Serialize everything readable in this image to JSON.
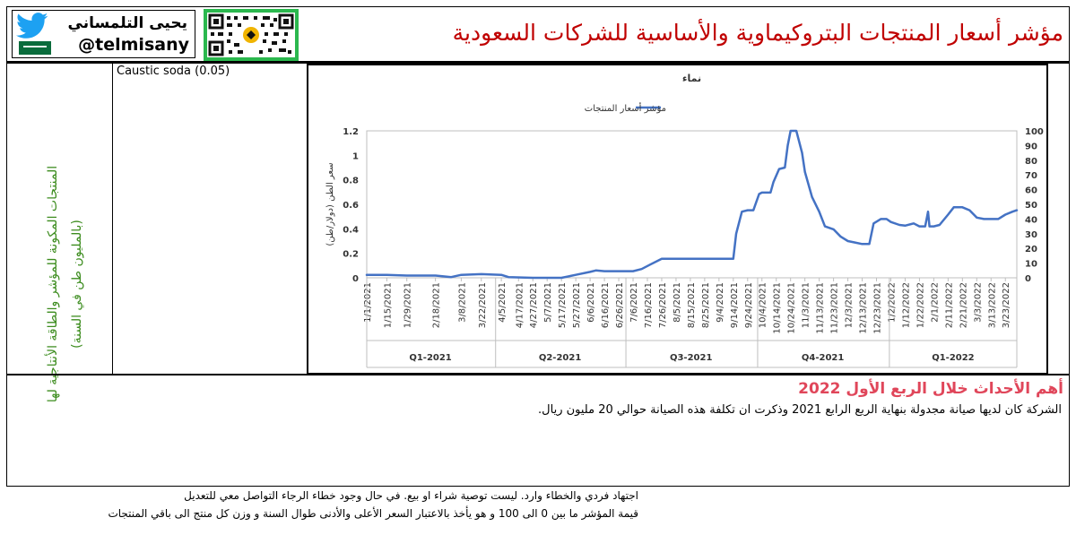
{
  "header": {
    "title": "مؤشر أسعار المنتجات البتروكيماوية والأساسية للشركات السعودية",
    "author_name": "يحيى التلمساني",
    "author_handle": "@telmisany"
  },
  "left_panel": {
    "vertical_text": "المنتجات المكونة للمؤشر والطاقة الأنتاجية لها (بالمليون طن في السنة)"
  },
  "products_panel": {
    "items": [
      "Caustic soda (0.05)"
    ]
  },
  "events": {
    "title": "أهم الأحداث خلال الربع الأول 2022",
    "text": "الشركة كان لديها صيانة مجدولة بنهاية الربع الرابع 2021 وذكرت ان تكلفة هذه الصيانة حوالي 20 مليون ريال."
  },
  "footer": {
    "line1": "اجتهاد فردي والخطاء وارد. ليست توصية شراء او بيع. في حال وجود خطاء الرجاء التواصل معي للتعديل",
    "line2": "قيمة المؤشر ما بين 0 الى 100 و هو يأخذ بالاعتبار السعر الأعلى والأدنى طوال السنة و وزن كل منتج الى باقي المنتجات"
  },
  "colors": {
    "title": "#c00000",
    "events_title": "#e0465a",
    "vertical_text": "#3c8c1e",
    "series_line": "#4472c4",
    "qr_background": "#2bb84e"
  },
  "chart_data": {
    "type": "line",
    "title": "نماء",
    "ylabel": "سعر الطن (دولار/طن)",
    "legend": {
      "position": "top",
      "label": "مؤشر أسعار المنتجات"
    },
    "y_left": {
      "min": 0,
      "max": 1.2,
      "ticks": [
        "0",
        "0.2",
        "0.4",
        "0.6",
        "0.8",
        "1",
        "1.2"
      ]
    },
    "y_right": {
      "min": 0,
      "max": 100,
      "ticks": [
        "0",
        "10",
        "20",
        "30",
        "40",
        "50",
        "60",
        "70",
        "80",
        "90",
        "100"
      ]
    },
    "x_tick_labels": [
      "1/1/2021",
      "1/15/2021",
      "1/29/2021",
      "2/18/2021",
      "3/8/2021",
      "3/22/2021",
      "4/5/2021",
      "4/17/2021",
      "4/27/2021",
      "5/7/2021",
      "5/17/2021",
      "5/27/2021",
      "6/6/2021",
      "6/16/2021",
      "6/26/2021",
      "7/6/2021",
      "7/16/2021",
      "7/26/2021",
      "8/5/2021",
      "8/15/2021",
      "8/25/2021",
      "9/4/2021",
      "9/14/2021",
      "9/24/2021",
      "10/4/2021",
      "10/14/2021",
      "10/24/2021",
      "11/3/2021",
      "11/13/2021",
      "11/23/2021",
      "12/3/2021",
      "12/13/2021",
      "12/23/2021",
      "1/2/2022",
      "1/12/2022",
      "1/22/2022",
      "2/1/2022",
      "2/11/2022",
      "2/21/2022",
      "3/3/2022",
      "3/13/2022",
      "3/23/2022"
    ],
    "quarters": [
      {
        "label": "Q1-2021",
        "start": "1/1/2021",
        "end": "3/31/2021"
      },
      {
        "label": "Q2-2021",
        "start": "4/1/2021",
        "end": "6/30/2021"
      },
      {
        "label": "Q3-2021",
        "start": "7/1/2021",
        "end": "9/30/2021"
      },
      {
        "label": "Q4-2021",
        "start": "10/1/2021",
        "end": "12/31/2021"
      },
      {
        "label": "Q1-2022",
        "start": "1/1/2022",
        "end": "3/31/2022"
      }
    ],
    "series": [
      {
        "name": "مؤشر أسعار المنتجات",
        "axis": "right",
        "points": [
          [
            "1/1/2021",
            2
          ],
          [
            "1/15/2021",
            2
          ],
          [
            "1/29/2021",
            1.5
          ],
          [
            "2/18/2021",
            1.5
          ],
          [
            "3/1/2021",
            0.5
          ],
          [
            "3/8/2021",
            2
          ],
          [
            "3/22/2021",
            2.5
          ],
          [
            "4/5/2021",
            2
          ],
          [
            "4/10/2021",
            0.5
          ],
          [
            "4/27/2021",
            0
          ],
          [
            "5/7/2021",
            0
          ],
          [
            "5/17/2021",
            0
          ],
          [
            "5/27/2021",
            2
          ],
          [
            "6/6/2021",
            4
          ],
          [
            "6/10/2021",
            5
          ],
          [
            "6/16/2021",
            4.5
          ],
          [
            "6/26/2021",
            4.5
          ],
          [
            "7/6/2021",
            4.5
          ],
          [
            "7/12/2021",
            6
          ],
          [
            "7/18/2021",
            9
          ],
          [
            "7/26/2021",
            13
          ],
          [
            "8/5/2021",
            13
          ],
          [
            "8/15/2021",
            13
          ],
          [
            "8/25/2021",
            13
          ],
          [
            "9/4/2021",
            13
          ],
          [
            "9/14/2021",
            13
          ],
          [
            "9/16/2021",
            30
          ],
          [
            "9/20/2021",
            45
          ],
          [
            "9/24/2021",
            46
          ],
          [
            "9/28/2021",
            46
          ],
          [
            "10/2/2021",
            57
          ],
          [
            "10/4/2021",
            58
          ],
          [
            "10/10/2021",
            58
          ],
          [
            "10/12/2021",
            65
          ],
          [
            "10/16/2021",
            74
          ],
          [
            "10/20/2021",
            75
          ],
          [
            "10/22/2021",
            90
          ],
          [
            "10/24/2021",
            100
          ],
          [
            "10/28/2021",
            100
          ],
          [
            "11/1/2021",
            85
          ],
          [
            "11/3/2021",
            72
          ],
          [
            "11/8/2021",
            55
          ],
          [
            "11/13/2021",
            45
          ],
          [
            "11/17/2021",
            35
          ],
          [
            "11/23/2021",
            33
          ],
          [
            "11/28/2021",
            28
          ],
          [
            "12/3/2021",
            25
          ],
          [
            "12/8/2021",
            24
          ],
          [
            "12/13/2021",
            23
          ],
          [
            "12/18/2021",
            23
          ],
          [
            "12/21/2021",
            37
          ],
          [
            "12/26/2021",
            40
          ],
          [
            "12/30/2021",
            40
          ],
          [
            "1/2/2022",
            38
          ],
          [
            "1/8/2022",
            36
          ],
          [
            "1/12/2022",
            35.5
          ],
          [
            "1/18/2022",
            37
          ],
          [
            "1/22/2022",
            35
          ],
          [
            "1/26/2022",
            35
          ],
          [
            "1/28/2022",
            45
          ],
          [
            "1/29/2022",
            35
          ],
          [
            "2/1/2022",
            35
          ],
          [
            "2/5/2022",
            36
          ],
          [
            "2/11/2022",
            43
          ],
          [
            "2/15/2022",
            48
          ],
          [
            "2/21/2022",
            48
          ],
          [
            "2/26/2022",
            46
          ],
          [
            "3/3/2022",
            41
          ],
          [
            "3/8/2022",
            40
          ],
          [
            "3/13/2022",
            40
          ],
          [
            "3/18/2022",
            40
          ],
          [
            "3/23/2022",
            43
          ],
          [
            "3/28/2022",
            45
          ],
          [
            "3/31/2022",
            46
          ]
        ]
      }
    ]
  }
}
